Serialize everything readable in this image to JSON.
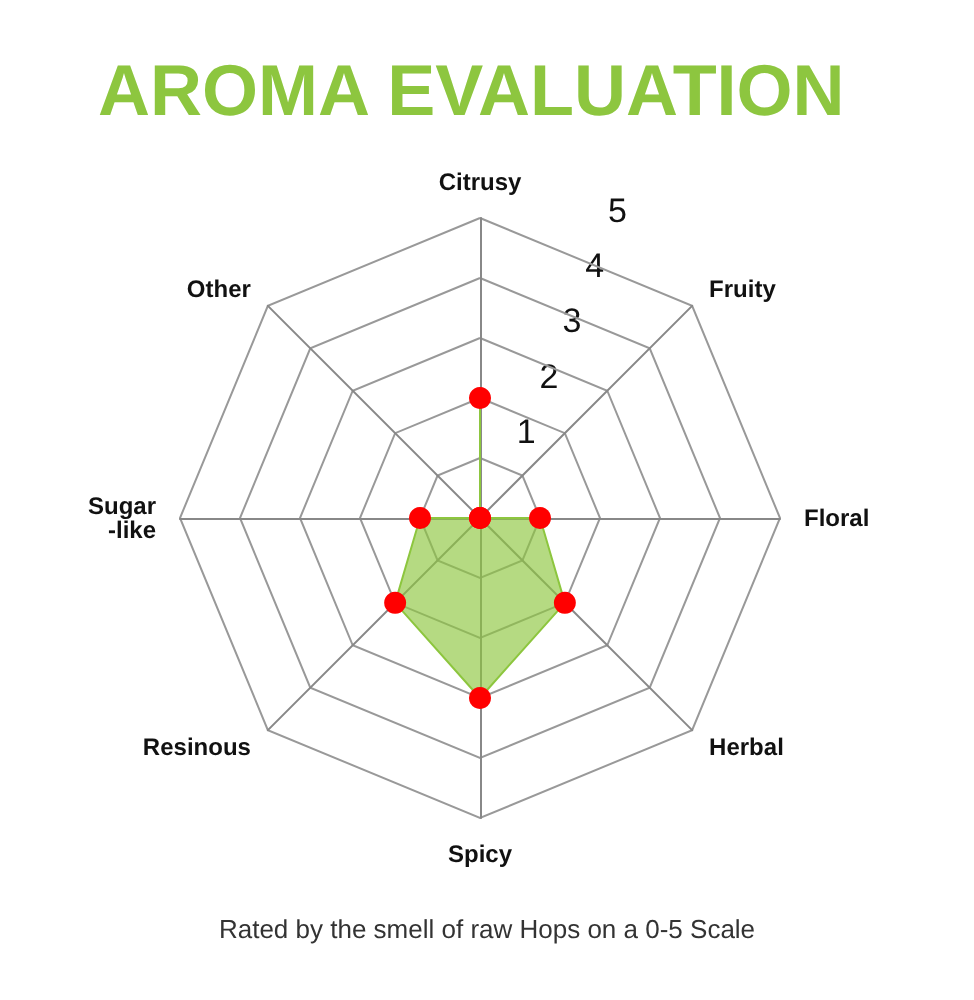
{
  "chart_data": {
    "type": "radar",
    "title": "AROMA EVALUATION",
    "categories": [
      "Citrusy",
      "Fruity",
      "Floral",
      "Herbal",
      "Spicy",
      "Resinous",
      "Sugar\n-like",
      "Other"
    ],
    "series": [
      {
        "color": "#8dc63f",
        "values": [
          2,
          0,
          1,
          2,
          3,
          2,
          1,
          0
        ]
      }
    ],
    "ylim": [
      0,
      5
    ],
    "yticks": [
      1,
      2,
      3,
      4,
      5
    ],
    "marker": "circle",
    "annotations": [
      "Rated by the smell of raw Hops on a 0-5 Scale"
    ]
  }
}
